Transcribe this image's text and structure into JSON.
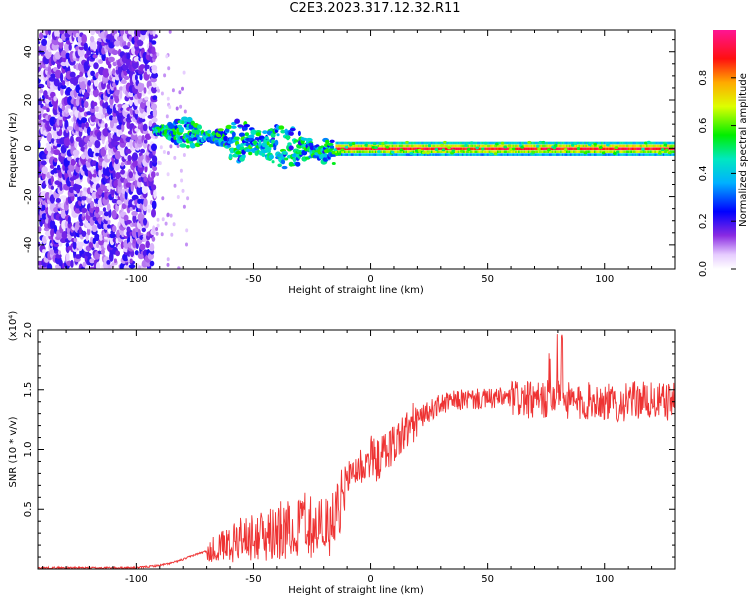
{
  "title": "C2E3.2023.317.12.32.R11",
  "chart_data": [
    {
      "type": "heatmap",
      "xlabel": "Height of straight line (km)",
      "ylabel": "Frequency (Hz)",
      "xlim": [
        -142,
        130
      ],
      "ylim": [
        -50,
        49
      ],
      "xticks": [
        -100,
        -50,
        0,
        50,
        100
      ],
      "yticks": [
        -40,
        -20,
        0,
        20,
        40
      ],
      "grid": false,
      "colorbar": {
        "label": "Normalized spectral amplitude",
        "ticks": [
          "0.0",
          "0.2",
          "0.4",
          "0.6",
          "0.8"
        ],
        "range": [
          0,
          1
        ]
      },
      "regions": [
        {
          "x_range": [
            -142,
            -92
          ],
          "y_range": [
            -50,
            49
          ],
          "amplitude": [
            0.0,
            0.2
          ],
          "pattern": "broadband noise"
        },
        {
          "x_range": [
            -92,
            -15
          ],
          "center_frequency": [
            8,
            -2
          ],
          "amplitude": [
            0.2,
            0.6
          ],
          "pattern": "narrow band, decreasing frequency"
        },
        {
          "x_range": [
            -15,
            130
          ],
          "center_frequency": [
            0,
            0
          ],
          "amplitude": [
            0.4,
            1.0
          ],
          "pattern": "narrow band at 0 Hz"
        }
      ]
    },
    {
      "type": "line",
      "xlabel": "Height of straight line (km)",
      "ylabel": "SNR (10 * v/v)",
      "scale_note": "(x10⁴)",
      "xlim": [
        -142,
        130
      ],
      "ylim": [
        0,
        2.0
      ],
      "xticks": [
        -100,
        -50,
        0,
        50,
        100
      ],
      "yticks": [
        "0.5",
        "1.0",
        "1.5",
        "2.0"
      ],
      "ytick_values": [
        0.5,
        1.0,
        1.5,
        2.0
      ],
      "color": "#ee3333",
      "series": [
        {
          "x": [
            -142,
            -130,
            -120,
            -110,
            -100,
            -95,
            -90,
            -85,
            -80,
            -75,
            -70,
            -65,
            -60,
            -55,
            -50,
            -45,
            -40,
            -35,
            -30,
            -25,
            -20,
            -15,
            -12,
            -10,
            -8,
            -5,
            -2,
            0,
            3,
            6,
            10,
            15,
            20,
            25,
            30,
            35,
            40,
            45,
            50,
            55,
            60,
            65,
            70,
            75,
            80,
            85,
            90,
            95,
            100,
            105,
            110,
            115,
            120,
            125,
            130
          ],
          "y": [
            0.01,
            0.01,
            0.01,
            0.01,
            0.01,
            0.02,
            0.03,
            0.05,
            0.08,
            0.12,
            0.15,
            0.2,
            0.25,
            0.28,
            0.3,
            0.33,
            0.36,
            0.38,
            0.42,
            0.45,
            0.4,
            0.42,
            0.6,
            0.75,
            0.82,
            0.85,
            0.88,
            0.95,
            0.9,
            0.98,
            1.05,
            1.15,
            1.25,
            1.32,
            1.38,
            1.4,
            1.42,
            1.42,
            1.42,
            1.43,
            1.43,
            1.42,
            1.4,
            1.42,
            1.45,
            1.4,
            1.38,
            1.42,
            1.4,
            1.38,
            1.4,
            1.42,
            1.4,
            1.4,
            1.4
          ]
        }
      ]
    }
  ]
}
